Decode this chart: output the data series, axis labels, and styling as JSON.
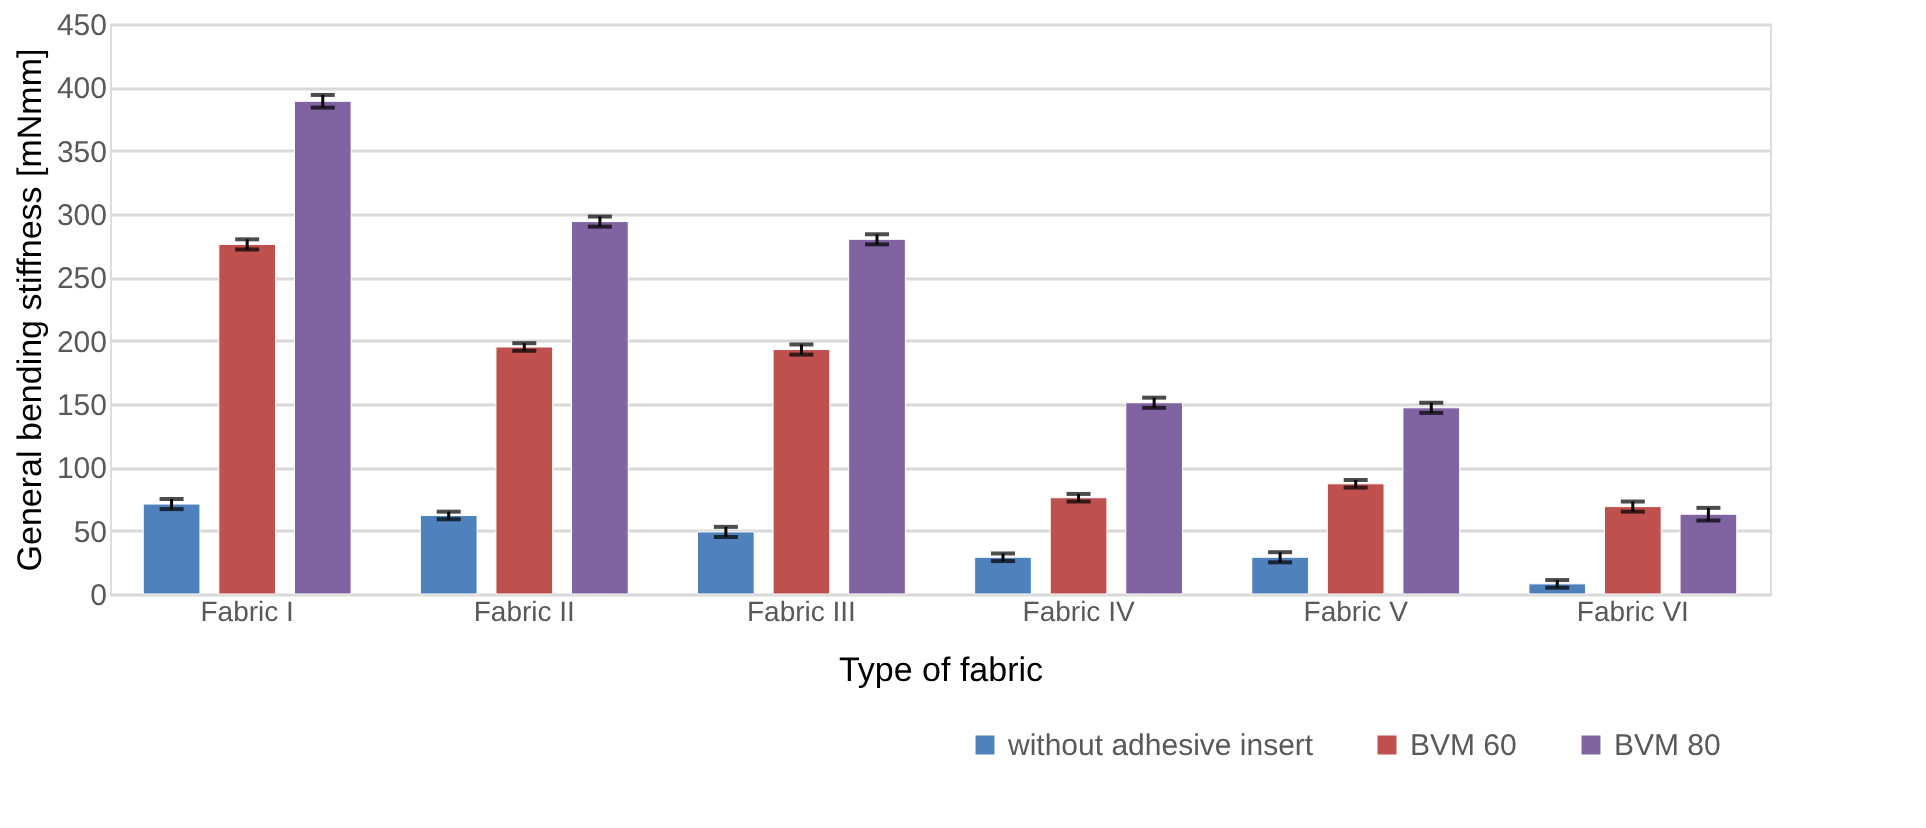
{
  "chart_data": {
    "type": "bar",
    "xlabel": "Type of fabric",
    "ylabel": "General bending stiffness [mNmm]",
    "categories": [
      "Fabric I",
      "Fabric II",
      "Fabric III",
      "Fabric IV",
      "Fabric V",
      "Fabric VI"
    ],
    "series": [
      {
        "name": "without adhesive insert",
        "color": "#4f81bd",
        "values": [
          71,
          62,
          49,
          29,
          29,
          8
        ],
        "errors": [
          4,
          3,
          4,
          3,
          4,
          3
        ]
      },
      {
        "name": "BVM 60",
        "color": "#c0504d",
        "values": [
          276,
          195,
          193,
          76,
          87,
          69
        ],
        "errors": [
          4,
          3,
          4,
          3,
          3,
          4
        ]
      },
      {
        "name": "BVM 80",
        "color": "#8064a2",
        "values": [
          389,
          294,
          280,
          151,
          147,
          63
        ],
        "errors": [
          5,
          4,
          4,
          4,
          4,
          5
        ]
      }
    ],
    "ylim": [
      0,
      450
    ],
    "yticks": [
      0,
      50,
      100,
      150,
      200,
      250,
      300,
      350,
      400,
      450
    ],
    "grid": "y",
    "legend": "bottom right"
  }
}
